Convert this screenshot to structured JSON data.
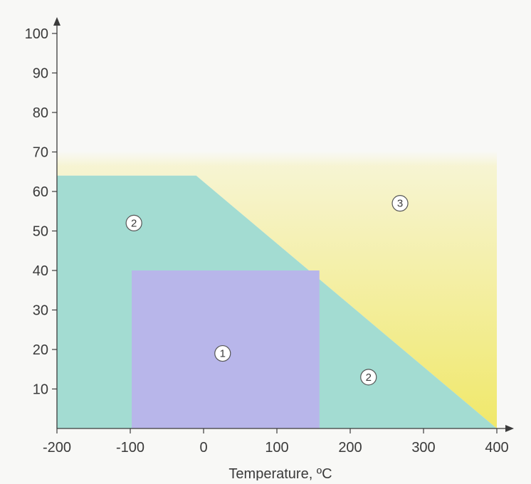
{
  "chart_data": {
    "type": "area",
    "title": "",
    "xlabel": "Temperature, ºC",
    "ylabel": "",
    "xlim": [
      -200,
      400
    ],
    "ylim": [
      0,
      100
    ],
    "x_ticks": [
      -200,
      -100,
      0,
      100,
      200,
      300,
      400
    ],
    "x_tick_labels": [
      "-200",
      "-100",
      "0",
      "100",
      "200",
      "300",
      "400"
    ],
    "y_ticks": [
      10,
      20,
      30,
      40,
      50,
      60,
      70,
      80,
      90,
      100
    ],
    "y_tick_labels": [
      "10",
      "20",
      "30",
      "40",
      "50",
      "60",
      "70",
      "80",
      "90",
      "100"
    ],
    "grid": false,
    "legend": "none",
    "regions": [
      {
        "id": "region-2",
        "label": "2",
        "color": "#a3dcd2",
        "polygon": [
          [
            -200,
            0
          ],
          [
            -200,
            64
          ],
          [
            -10,
            64
          ],
          [
            400,
            0
          ]
        ],
        "label_positions": [
          [
            -95,
            52
          ],
          [
            225,
            13
          ]
        ]
      },
      {
        "id": "region-1",
        "label": "1",
        "color": "#b8b6ea",
        "polygon": [
          [
            -98,
            0
          ],
          [
            -98,
            40
          ],
          [
            158,
            40
          ],
          [
            158,
            0
          ]
        ],
        "label_positions": [
          [
            26,
            19
          ]
        ]
      },
      {
        "id": "region-3",
        "label": "3",
        "color_top": "#f7f5d8",
        "color_bottom": "#f0e86a",
        "polygon": [
          [
            -200,
            70
          ],
          [
            400,
            70
          ],
          [
            400,
            0
          ],
          [
            -10,
            64
          ],
          [
            -200,
            64
          ]
        ],
        "label_positions": [
          [
            268,
            57
          ]
        ]
      }
    ]
  }
}
